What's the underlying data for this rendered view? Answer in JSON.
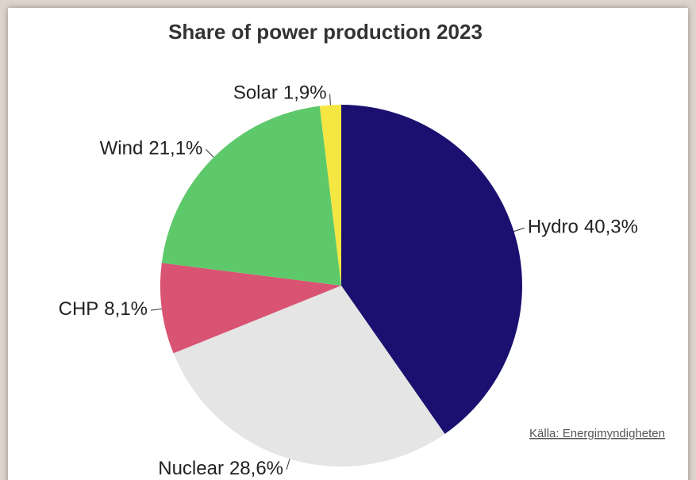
{
  "chart_data": {
    "type": "pie",
    "title": "Share of power production 2023",
    "categories": [
      "Hydro",
      "Nuclear",
      "CHP",
      "Wind",
      "Solar"
    ],
    "values": [
      40.3,
      28.6,
      8.1,
      21.1,
      1.9
    ],
    "value_labels": [
      "40,3%",
      "28,6%",
      "8,1%",
      "21,1%",
      "1,9%"
    ],
    "colors": [
      "#1b1070",
      "#e5e5e5",
      "#d95372",
      "#5ec96a",
      "#f5e642"
    ],
    "source": "Källa: Energimyndigheten"
  }
}
